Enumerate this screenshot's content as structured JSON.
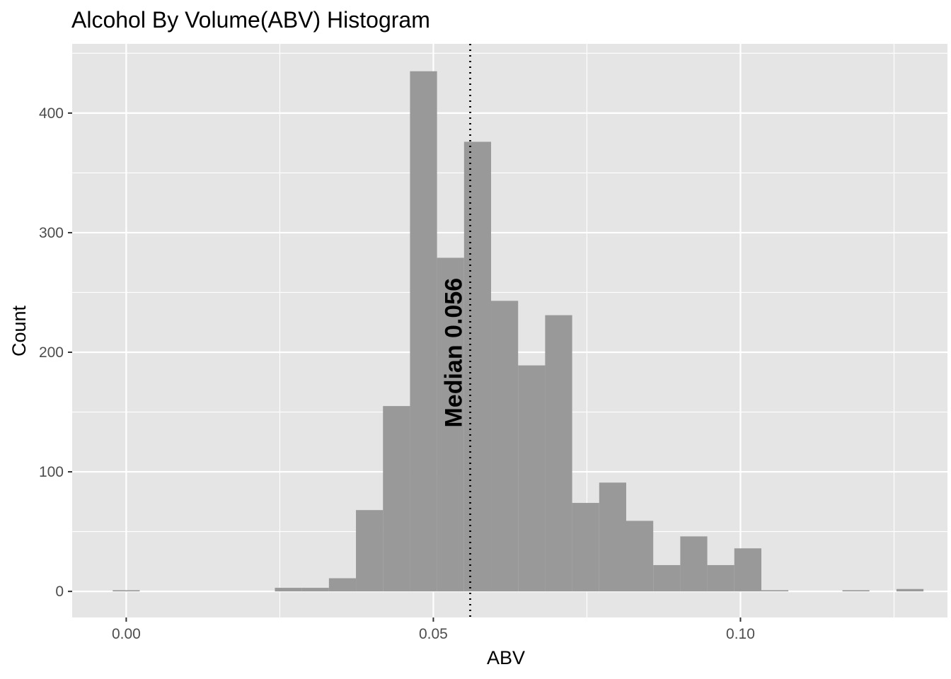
{
  "chart_data": {
    "type": "bar",
    "title": "Alcohol By Volume(ABV) Histogram",
    "xlabel": "ABV",
    "ylabel": "Count",
    "xlim": [
      -0.0088,
      0.1337
    ],
    "ylim": [
      -21.8,
      457.9
    ],
    "x_ticks": [
      0.0,
      0.05,
      0.1
    ],
    "x_tick_labels": [
      "0.00",
      "0.05",
      "0.10"
    ],
    "y_ticks": [
      0,
      100,
      200,
      300,
      400
    ],
    "y_tick_labels": [
      "0",
      "100",
      "200",
      "300",
      "400"
    ],
    "grid": true,
    "bin_width": 0.0044,
    "bins": [
      {
        "x": 0.0,
        "count": 1
      },
      {
        "x": 0.0044,
        "count": 0
      },
      {
        "x": 0.0088,
        "count": 0
      },
      {
        "x": 0.0132,
        "count": 0
      },
      {
        "x": 0.0176,
        "count": 0
      },
      {
        "x": 0.022,
        "count": 0
      },
      {
        "x": 0.0264,
        "count": 3
      },
      {
        "x": 0.0308,
        "count": 3
      },
      {
        "x": 0.0352,
        "count": 11
      },
      {
        "x": 0.0396,
        "count": 68
      },
      {
        "x": 0.044,
        "count": 155
      },
      {
        "x": 0.0484,
        "count": 435
      },
      {
        "x": 0.0528,
        "count": 279
      },
      {
        "x": 0.0572,
        "count": 376
      },
      {
        "x": 0.0616,
        "count": 243
      },
      {
        "x": 0.066,
        "count": 189
      },
      {
        "x": 0.0704,
        "count": 231
      },
      {
        "x": 0.0748,
        "count": 74
      },
      {
        "x": 0.0792,
        "count": 91
      },
      {
        "x": 0.0836,
        "count": 59
      },
      {
        "x": 0.088,
        "count": 22
      },
      {
        "x": 0.0924,
        "count": 46
      },
      {
        "x": 0.0968,
        "count": 22
      },
      {
        "x": 0.1012,
        "count": 36
      },
      {
        "x": 0.1056,
        "count": 1
      },
      {
        "x": 0.11,
        "count": 0
      },
      {
        "x": 0.1144,
        "count": 0
      },
      {
        "x": 0.1188,
        "count": 1
      },
      {
        "x": 0.1232,
        "count": 0
      },
      {
        "x": 0.1276,
        "count": 2
      }
    ],
    "median": 0.056,
    "median_label": "Median 0.056",
    "median_label_y": 137,
    "colors": {
      "panel": "#e5e5e5",
      "grid": "#ffffff",
      "bar": "#999999",
      "median_line": "#000000"
    }
  }
}
